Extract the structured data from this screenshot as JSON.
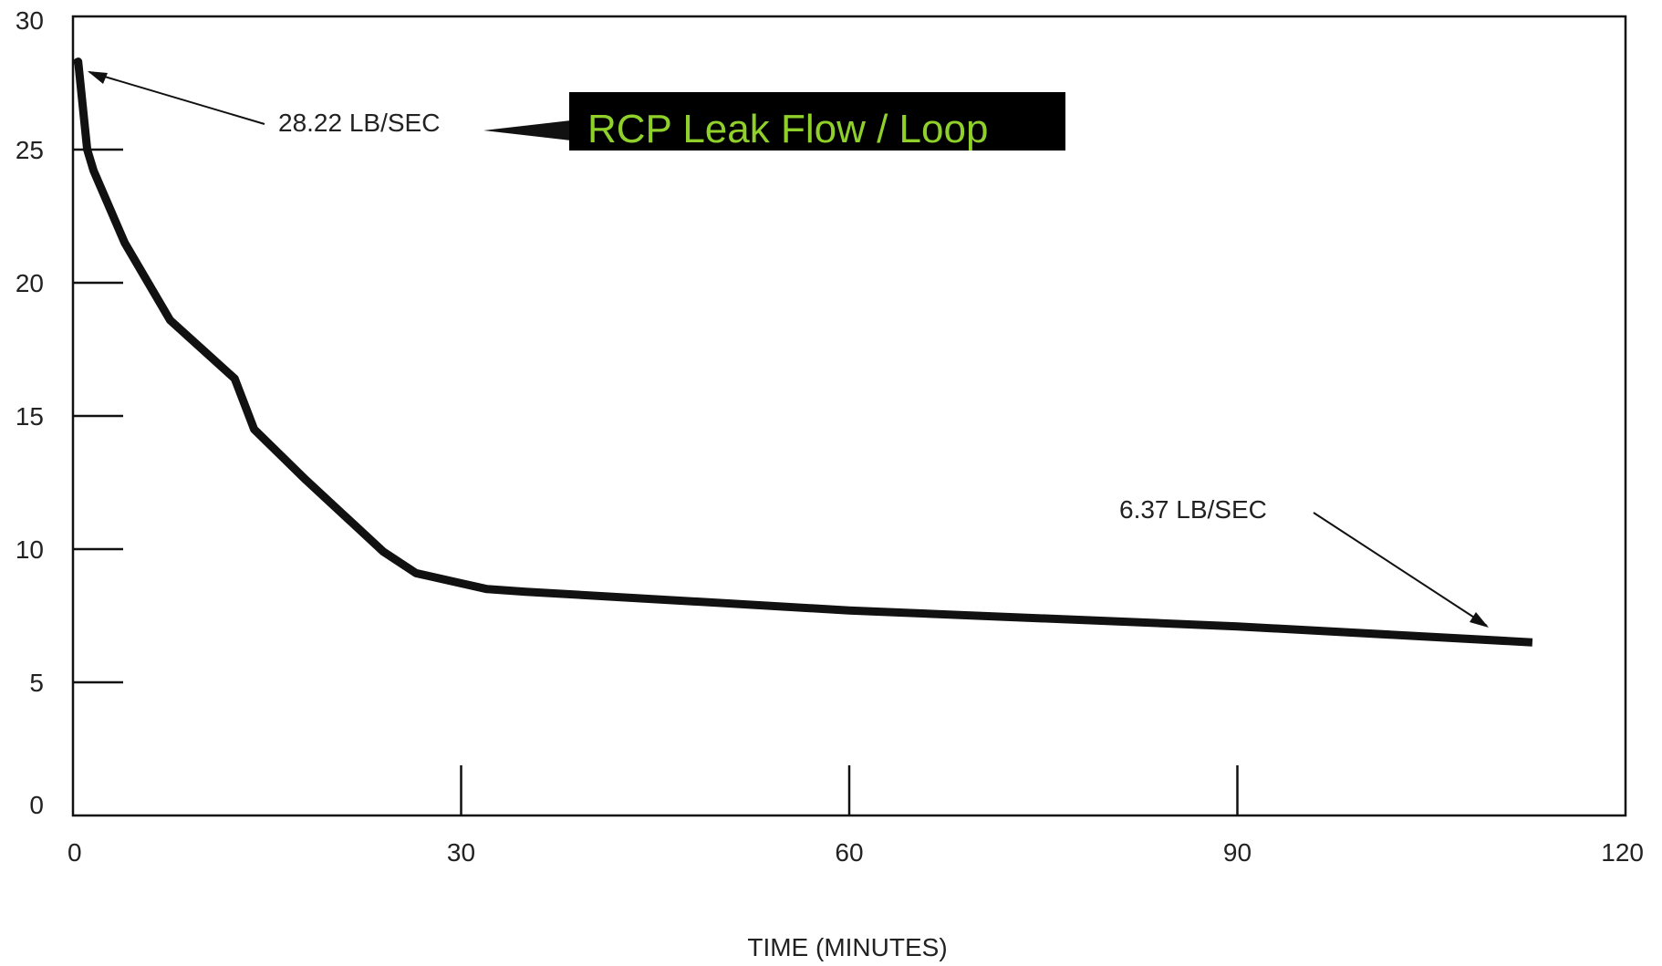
{
  "chart_data": {
    "type": "line",
    "title": "RCP Leak Flow / Loop",
    "xlabel": "TIME (MINUTES)",
    "ylabel": "",
    "xlim": [
      0,
      120
    ],
    "ylim": [
      0,
      30
    ],
    "x_ticks": [
      "0",
      "30",
      "60",
      "90",
      "120"
    ],
    "y_ticks": [
      "0",
      "5",
      "10",
      "15",
      "20",
      "25",
      "30"
    ],
    "grid": false,
    "series": [
      {
        "x": [
          0.1,
          0.4,
          1.1,
          1.6,
          4.0,
          7.5,
          12.5,
          14.0,
          18.0,
          24.0,
          26.5,
          32.0,
          35.0,
          60.0,
          90.0,
          112.8
        ],
        "y": [
          28.2,
          28.3,
          25.0,
          24.2,
          21.5,
          18.6,
          16.4,
          14.5,
          12.6,
          9.9,
          9.1,
          8.5,
          8.4,
          7.7,
          7.1,
          6.5
        ]
      }
    ],
    "annotations": [
      {
        "text": "28.22 LB/SEC",
        "x": 0.4,
        "y": 28.22
      },
      {
        "text": "6.37 LB/SEC",
        "x": 111.5,
        "y": 6.37
      }
    ],
    "colors": {
      "line": "#111111",
      "axis": "#111111",
      "title_bg": "#000000",
      "title_text": "#8fd12a"
    }
  }
}
